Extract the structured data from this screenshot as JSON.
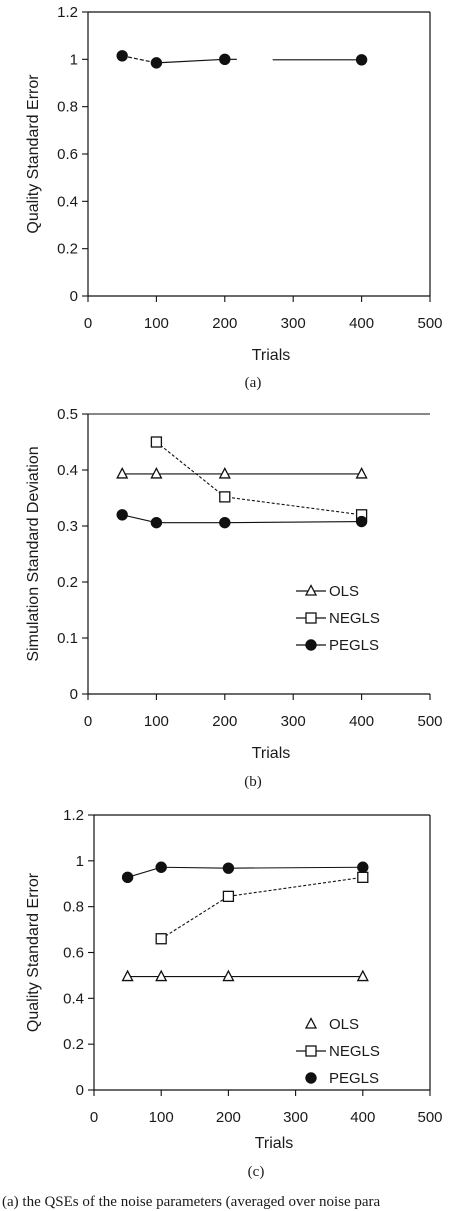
{
  "chart_data": [
    {
      "type": "line",
      "panel": "(a)",
      "xlabel": "Trials",
      "ylabel": "Quality Standard Error",
      "xlim": [
        0,
        500
      ],
      "ylim": [
        0,
        1.2
      ],
      "xticks": [
        "0",
        "100",
        "200",
        "300",
        "400",
        "500"
      ],
      "yticks": [
        "0",
        "0.2",
        "0.4",
        "0.6",
        "0.8",
        "1",
        "1.2"
      ],
      "legend": null,
      "series": [
        {
          "marker": "circle",
          "line": "dashed",
          "x": [
            50,
            100,
            200,
            400
          ],
          "y": [
            1.015,
            0.985,
            1.0,
            0.998
          ]
        }
      ]
    },
    {
      "type": "line",
      "panel": "(b)",
      "xlabel": "Trials",
      "ylabel": "Simulation Standard Deviation",
      "xlim": [
        0,
        500
      ],
      "ylim": [
        0,
        0.5
      ],
      "xticks": [
        "0",
        "100",
        "200",
        "300",
        "400",
        "500"
      ],
      "yticks": [
        "0",
        "0.1",
        "0.2",
        "0.3",
        "0.4",
        "0.5"
      ],
      "grid_y_top": true,
      "legend": "right",
      "series": [
        {
          "name": "OLS",
          "marker": "triangle",
          "line": "solid",
          "x": [
            50,
            100,
            200,
            400
          ],
          "y": [
            0.393,
            0.393,
            0.393,
            0.393
          ]
        },
        {
          "name": "NEGLS",
          "marker": "square",
          "line": "dashed",
          "x": [
            100,
            200,
            400
          ],
          "y": [
            0.45,
            0.352,
            0.32
          ]
        },
        {
          "name": "PEGLS",
          "marker": "circle",
          "line": "solid",
          "x": [
            50,
            100,
            200,
            400
          ],
          "y": [
            0.32,
            0.306,
            0.306,
            0.308
          ]
        }
      ]
    },
    {
      "type": "line",
      "panel": "(c)",
      "xlabel": "Trials",
      "ylabel": "Quality Standard Error",
      "xlim": [
        0,
        500
      ],
      "ylim": [
        0,
        1.2
      ],
      "xticks": [
        "0",
        "100",
        "200",
        "300",
        "400",
        "500"
      ],
      "yticks": [
        "0",
        "0.2",
        "0.4",
        "0.6",
        "0.8",
        "1",
        "1.2"
      ],
      "legend": "bottom-right",
      "series": [
        {
          "name": "OLS",
          "marker": "triangle",
          "line": "solid",
          "x": [
            50,
            100,
            200,
            400
          ],
          "y": [
            0.495,
            0.495,
            0.495,
            0.495
          ]
        },
        {
          "name": "NEGLS",
          "marker": "square",
          "line": "dashed",
          "x": [
            100,
            200,
            400
          ],
          "y": [
            0.66,
            0.845,
            0.928
          ]
        },
        {
          "name": "PEGLS",
          "marker": "circle",
          "line": "solid",
          "x": [
            50,
            100,
            200,
            400
          ],
          "y": [
            0.928,
            0.972,
            0.968,
            0.972
          ]
        }
      ]
    }
  ],
  "footer": "(a) the QSEs of the noise parameters (averaged over noise para"
}
